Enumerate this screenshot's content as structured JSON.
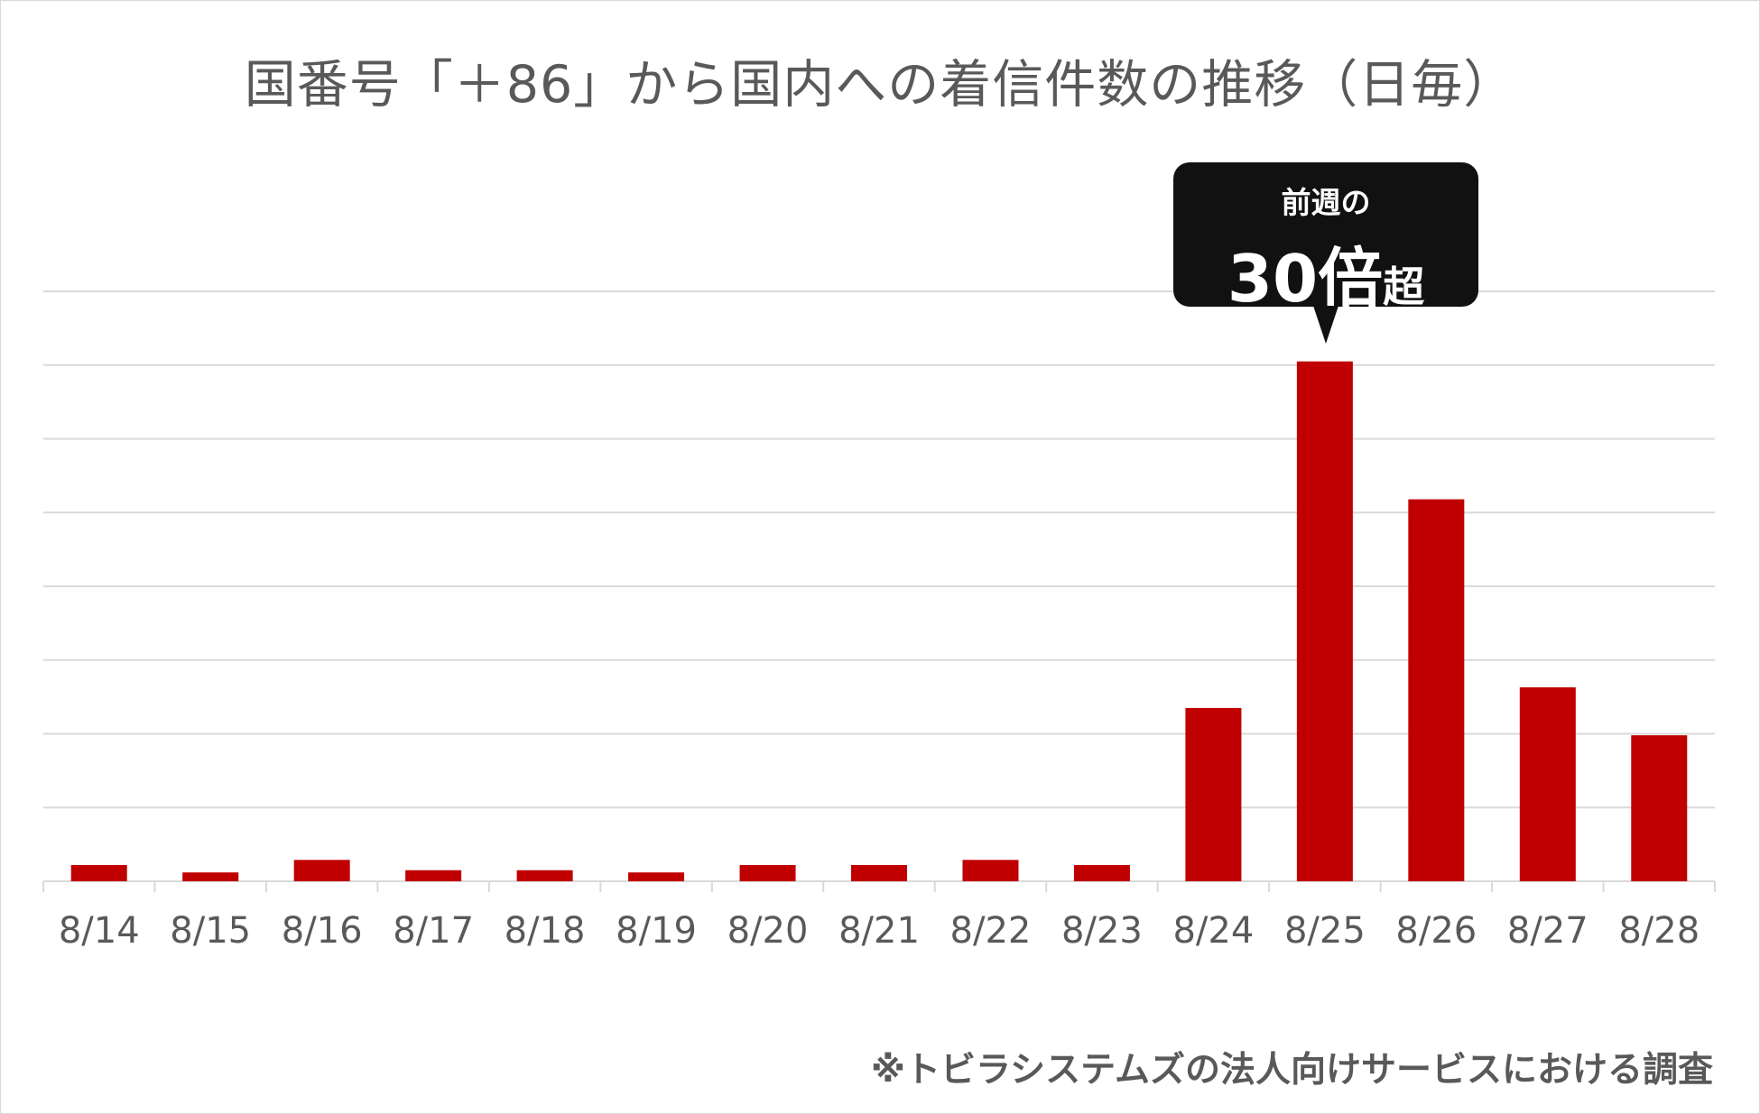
{
  "chart_data": {
    "type": "bar",
    "title": "国番号「＋86」から国内への着信件数の推移（日毎）",
    "categories": [
      "8/14",
      "8/15",
      "8/16",
      "8/17",
      "8/18",
      "8/19",
      "8/20",
      "8/21",
      "8/22",
      "8/23",
      "8/24",
      "8/25",
      "8/26",
      "8/27",
      "8/28"
    ],
    "values": [
      2.2,
      1.2,
      2.9,
      1.5,
      1.5,
      1.2,
      2.2,
      2.2,
      2.9,
      2.2,
      23.5,
      70.5,
      51.8,
      26.3,
      19.8
    ],
    "ylim": [
      0,
      80
    ],
    "y_gridlines": true,
    "y_tick_labels_shown": false,
    "bar_color": "#c00000",
    "annotation": {
      "category": "8/25",
      "line1": "前週の",
      "big": "30倍",
      "small": "超"
    },
    "footnote": "※トビラシステムズの法人向けサービスにおける調査"
  }
}
